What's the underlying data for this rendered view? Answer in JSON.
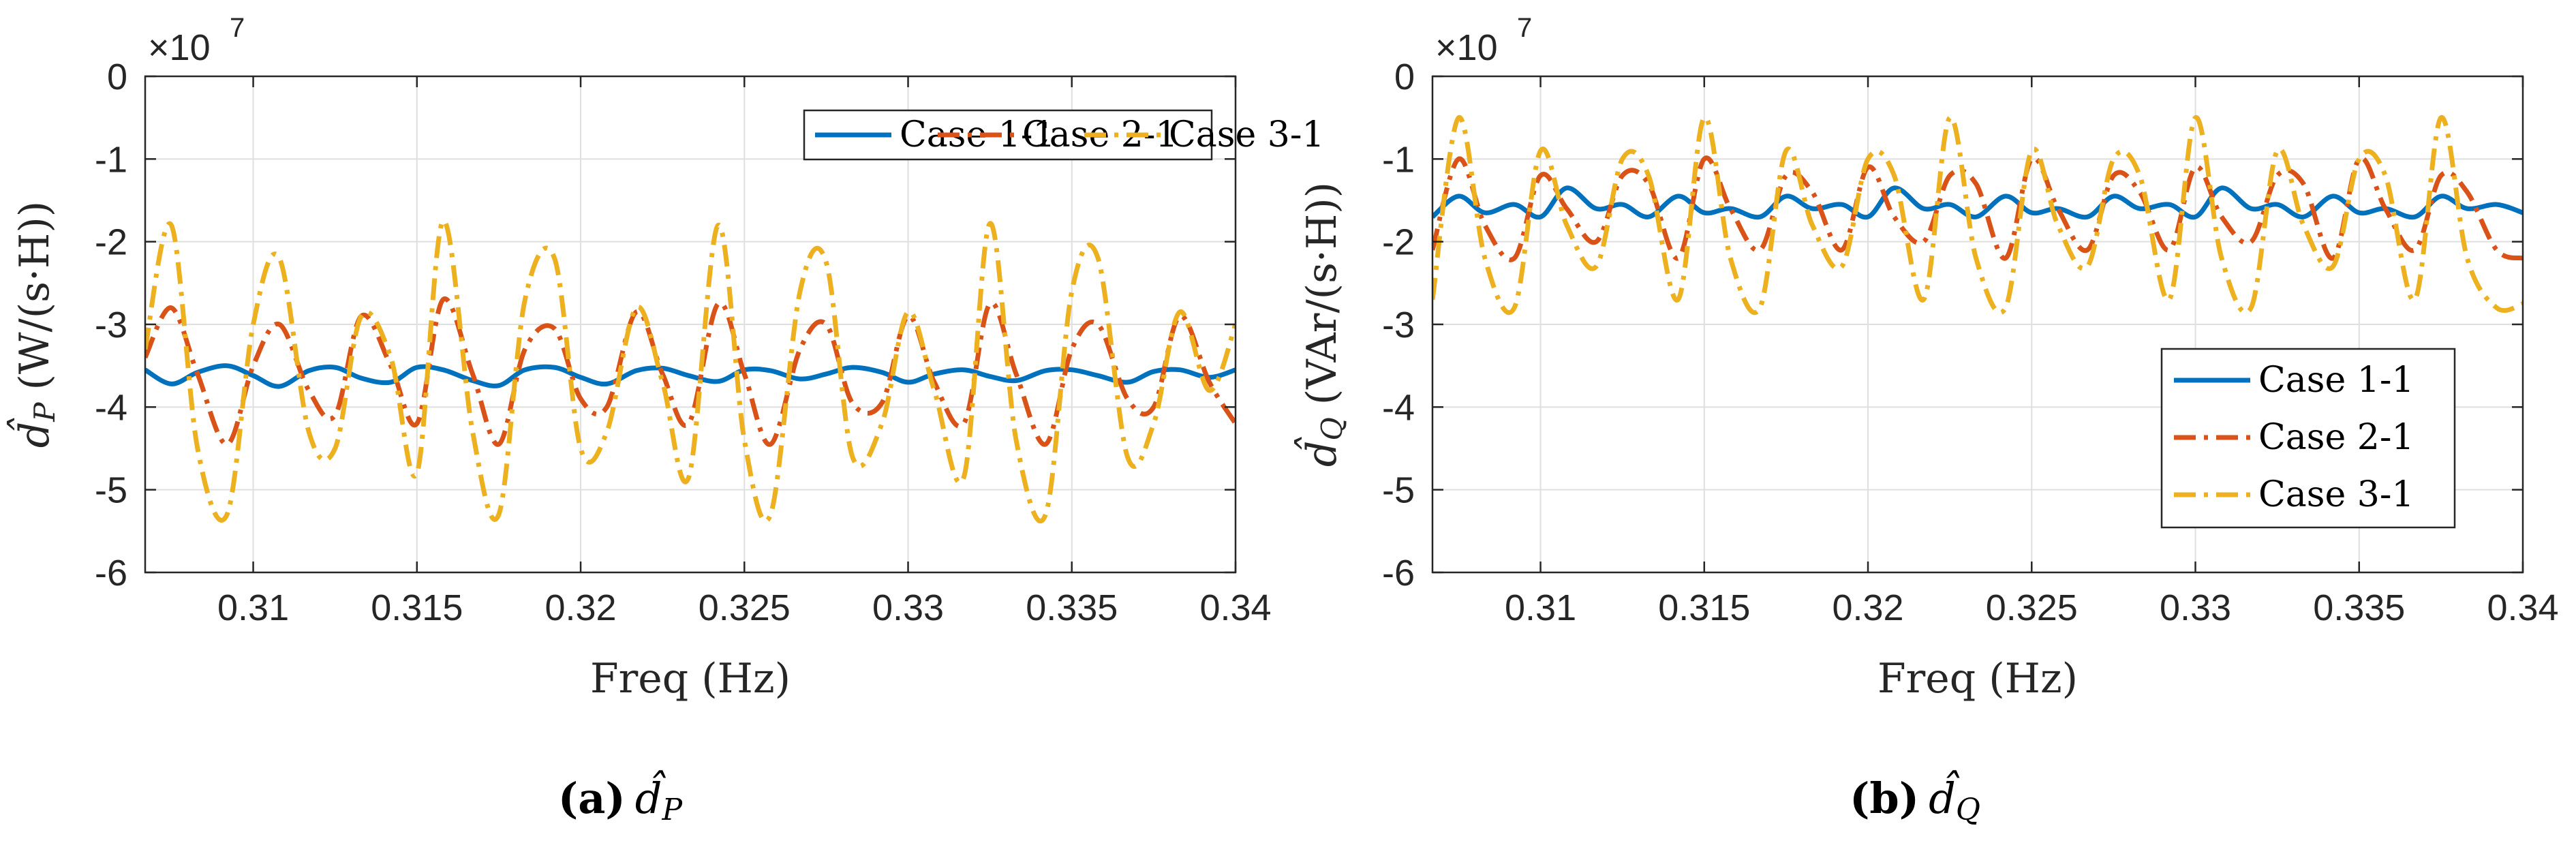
{
  "chart_data": [
    {
      "type": "line",
      "panel": "a",
      "xlabel": "Freq (Hz)",
      "ylabel": "d̂P (W/(s·H))",
      "ylabel_symbol": "d̂",
      "ylabel_sub": "P",
      "ylabel_units": "(W/(s·H))",
      "y_multiplier": "×10",
      "y_multiplier_exp": "7",
      "xlim": [
        0.3067,
        0.34
      ],
      "ylim": [
        -6,
        0
      ],
      "xticks": [
        0.31,
        0.315,
        0.32,
        0.325,
        0.33,
        0.335,
        0.34
      ],
      "xtick_labels": [
        "0.31",
        "0.315",
        "0.32",
        "0.325",
        "0.33",
        "0.335",
        "0.34"
      ],
      "yticks": [
        -6,
        -5,
        -4,
        -3,
        -2,
        -1,
        0
      ],
      "ytick_labels": [
        "-6",
        "-5",
        "-4",
        "-3",
        "-2",
        "-1",
        "0"
      ],
      "grid": true,
      "legend": {
        "placement": "top-right",
        "orientation": "horizontal"
      },
      "caption_label": "(a)",
      "caption_symbol": "d̂",
      "caption_sub": "P",
      "series": [
        {
          "name": "Case 1-1",
          "color": "#0072BD",
          "style": "solid",
          "x": [
            0.3067,
            0.3075,
            0.3083,
            0.3092,
            0.31,
            0.3108,
            0.3117,
            0.3125,
            0.3133,
            0.3142,
            0.315,
            0.3158,
            0.3167,
            0.3175,
            0.3183,
            0.3192,
            0.32,
            0.3208,
            0.3217,
            0.3225,
            0.3233,
            0.3242,
            0.325,
            0.3258,
            0.3267,
            0.3275,
            0.3283,
            0.3292,
            0.33,
            0.3308,
            0.3317,
            0.3325,
            0.3333,
            0.3342,
            0.335,
            0.3358,
            0.3367,
            0.3375,
            0.3383,
            0.3392,
            0.34
          ],
          "y": [
            -3.55,
            -3.72,
            -3.58,
            -3.5,
            -3.62,
            -3.75,
            -3.56,
            -3.52,
            -3.65,
            -3.7,
            -3.52,
            -3.55,
            -3.68,
            -3.74,
            -3.55,
            -3.52,
            -3.64,
            -3.72,
            -3.56,
            -3.53,
            -3.62,
            -3.69,
            -3.55,
            -3.56,
            -3.66,
            -3.6,
            -3.52,
            -3.58,
            -3.7,
            -3.6,
            -3.55,
            -3.63,
            -3.68,
            -3.56,
            -3.55,
            -3.62,
            -3.7,
            -3.57,
            -3.55,
            -3.64,
            -3.55
          ]
        },
        {
          "name": "Case 2-1",
          "color": "#D95319",
          "style": "dashdot",
          "x": [
            0.3067,
            0.3075,
            0.3083,
            0.3092,
            0.31,
            0.3108,
            0.3117,
            0.3125,
            0.3133,
            0.3142,
            0.315,
            0.3158,
            0.3167,
            0.3175,
            0.3183,
            0.3192,
            0.32,
            0.3208,
            0.3217,
            0.3225,
            0.3233,
            0.3242,
            0.325,
            0.3258,
            0.3267,
            0.3275,
            0.3283,
            0.3292,
            0.33,
            0.3308,
            0.3317,
            0.3325,
            0.3333,
            0.3342,
            0.335,
            0.3358,
            0.3367,
            0.3375,
            0.3383,
            0.3392,
            0.34
          ],
          "y": [
            -3.4,
            -2.8,
            -3.6,
            -4.45,
            -3.5,
            -3.0,
            -3.8,
            -4.1,
            -2.9,
            -3.5,
            -4.2,
            -2.7,
            -3.6,
            -4.45,
            -3.3,
            -3.05,
            -3.9,
            -4.0,
            -2.85,
            -3.6,
            -4.2,
            -2.75,
            -3.6,
            -4.45,
            -3.3,
            -3.0,
            -3.95,
            -3.95,
            -2.9,
            -3.7,
            -4.2,
            -2.75,
            -3.6,
            -4.45,
            -3.3,
            -3.0,
            -3.9,
            -4.0,
            -2.9,
            -3.7,
            -4.2
          ]
        },
        {
          "name": "Case 3-1",
          "color": "#EDB120",
          "style": "dashdot",
          "x": [
            0.3067,
            0.3075,
            0.3083,
            0.3092,
            0.31,
            0.3108,
            0.3117,
            0.3125,
            0.3133,
            0.3142,
            0.315,
            0.3158,
            0.3167,
            0.3175,
            0.3183,
            0.3192,
            0.32,
            0.3208,
            0.3217,
            0.3225,
            0.3233,
            0.3242,
            0.325,
            0.3258,
            0.3267,
            0.3275,
            0.3283,
            0.3292,
            0.33,
            0.3308,
            0.3317,
            0.3325,
            0.3333,
            0.3342,
            0.335,
            0.3358,
            0.3367,
            0.3375,
            0.3383,
            0.3392,
            0.34
          ],
          "y": [
            -3.3,
            -1.8,
            -4.5,
            -5.3,
            -3.0,
            -2.2,
            -4.3,
            -4.5,
            -2.9,
            -3.4,
            -4.8,
            -1.75,
            -4.3,
            -5.3,
            -2.7,
            -2.2,
            -4.5,
            -4.3,
            -2.8,
            -3.7,
            -4.85,
            -1.8,
            -4.4,
            -5.3,
            -2.6,
            -2.25,
            -4.6,
            -4.2,
            -2.85,
            -3.8,
            -4.85,
            -1.78,
            -4.4,
            -5.3,
            -2.6,
            -2.2,
            -4.6,
            -4.2,
            -2.85,
            -3.8,
            -3.0
          ]
        }
      ]
    },
    {
      "type": "line",
      "panel": "b",
      "xlabel": "Freq (Hz)",
      "ylabel": "d̂Q (VAr/(s·H))",
      "ylabel_symbol": "d̂",
      "ylabel_sub": "Q",
      "ylabel_units": "(VAr/(s·H))",
      "y_multiplier": "×10",
      "y_multiplier_exp": "7",
      "xlim": [
        0.3067,
        0.34
      ],
      "ylim": [
        -6,
        0
      ],
      "xticks": [
        0.31,
        0.315,
        0.32,
        0.325,
        0.33,
        0.335,
        0.34
      ],
      "xtick_labels": [
        "0.31",
        "0.315",
        "0.32",
        "0.325",
        "0.33",
        "0.335",
        "0.34"
      ],
      "yticks": [
        -6,
        -5,
        -4,
        -3,
        -2,
        -1,
        0
      ],
      "ytick_labels": [
        "-6",
        "-5",
        "-4",
        "-3",
        "-2",
        "-1",
        "0"
      ],
      "grid": true,
      "legend": {
        "placement": "bottom-right",
        "orientation": "vertical"
      },
      "caption_label": "(b)",
      "caption_symbol": "d̂",
      "caption_sub": "Q",
      "series": [
        {
          "name": "Case 1-1",
          "color": "#0072BD",
          "style": "solid",
          "x": [
            0.3067,
            0.3075,
            0.3083,
            0.3092,
            0.31,
            0.3108,
            0.3117,
            0.3125,
            0.3133,
            0.3142,
            0.315,
            0.3158,
            0.3167,
            0.3175,
            0.3183,
            0.3192,
            0.32,
            0.3208,
            0.3217,
            0.3225,
            0.3233,
            0.3242,
            0.325,
            0.3258,
            0.3267,
            0.3275,
            0.3283,
            0.3292,
            0.33,
            0.3308,
            0.3317,
            0.3325,
            0.3333,
            0.3342,
            0.335,
            0.3358,
            0.3367,
            0.3375,
            0.3383,
            0.3392,
            0.34
          ],
          "y": [
            -1.7,
            -1.45,
            -1.65,
            -1.55,
            -1.7,
            -1.35,
            -1.6,
            -1.55,
            -1.7,
            -1.45,
            -1.65,
            -1.6,
            -1.7,
            -1.45,
            -1.6,
            -1.55,
            -1.7,
            -1.35,
            -1.6,
            -1.55,
            -1.7,
            -1.45,
            -1.65,
            -1.6,
            -1.7,
            -1.45,
            -1.6,
            -1.55,
            -1.7,
            -1.35,
            -1.6,
            -1.55,
            -1.7,
            -1.45,
            -1.65,
            -1.6,
            -1.7,
            -1.45,
            -1.6,
            -1.55,
            -1.65
          ]
        },
        {
          "name": "Case 2-1",
          "color": "#D95319",
          "style": "dashdot",
          "x": [
            0.3067,
            0.3075,
            0.3083,
            0.3092,
            0.31,
            0.3108,
            0.3117,
            0.3125,
            0.3133,
            0.3142,
            0.315,
            0.3158,
            0.3167,
            0.3175,
            0.3183,
            0.3192,
            0.32,
            0.3208,
            0.3217,
            0.3225,
            0.3233,
            0.3242,
            0.325,
            0.3258,
            0.3267,
            0.3275,
            0.3283,
            0.3292,
            0.33,
            0.3308,
            0.3317,
            0.3325,
            0.3333,
            0.3342,
            0.335,
            0.3358,
            0.3367,
            0.3375,
            0.3383,
            0.3392,
            0.34
          ],
          "y": [
            -2.1,
            -1.0,
            -1.8,
            -2.2,
            -1.2,
            -1.6,
            -2.0,
            -1.2,
            -1.3,
            -2.2,
            -1.0,
            -1.6,
            -2.1,
            -1.2,
            -1.4,
            -2.1,
            -1.1,
            -1.7,
            -2.0,
            -1.2,
            -1.3,
            -2.2,
            -1.0,
            -1.6,
            -2.1,
            -1.2,
            -1.4,
            -2.1,
            -1.1,
            -1.7,
            -2.0,
            -1.2,
            -1.3,
            -2.2,
            -1.0,
            -1.6,
            -2.1,
            -1.2,
            -1.4,
            -2.1,
            -2.2
          ]
        },
        {
          "name": "Case 3-1",
          "color": "#EDB120",
          "style": "dashdot",
          "x": [
            0.3067,
            0.3075,
            0.3083,
            0.3092,
            0.31,
            0.3108,
            0.3117,
            0.3125,
            0.3133,
            0.3142,
            0.315,
            0.3158,
            0.3167,
            0.3175,
            0.3183,
            0.3192,
            0.32,
            0.3208,
            0.3217,
            0.3225,
            0.3233,
            0.3242,
            0.325,
            0.3258,
            0.3267,
            0.3275,
            0.3283,
            0.3292,
            0.33,
            0.3308,
            0.3317,
            0.3325,
            0.3333,
            0.3342,
            0.335,
            0.3358,
            0.3367,
            0.3375,
            0.3383,
            0.3392,
            0.34
          ],
          "y": [
            -2.7,
            -0.5,
            -2.2,
            -2.8,
            -0.9,
            -1.8,
            -2.3,
            -1.0,
            -1.2,
            -2.7,
            -0.5,
            -2.2,
            -2.8,
            -0.9,
            -1.8,
            -2.3,
            -1.0,
            -1.2,
            -2.7,
            -0.5,
            -2.2,
            -2.8,
            -0.9,
            -1.8,
            -2.3,
            -1.0,
            -1.2,
            -2.7,
            -0.5,
            -2.2,
            -2.8,
            -0.9,
            -1.8,
            -2.3,
            -1.0,
            -1.2,
            -2.7,
            -0.5,
            -2.2,
            -2.8,
            -2.75
          ]
        }
      ]
    }
  ]
}
